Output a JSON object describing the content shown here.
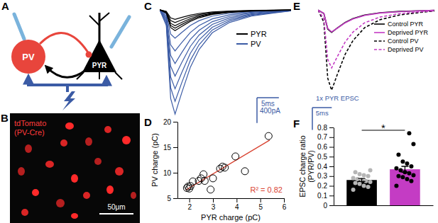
{
  "diagram": {
    "title": "A",
    "nodes": [
      {
        "label": "PV",
        "color": "#e8453c"
      },
      {
        "label": "PYR",
        "color": "#000000"
      }
    ]
  },
  "image": {
    "title": "B",
    "label_lines": [
      "tdTomato",
      "(PV-Cre)"
    ],
    "scale_bar": "50μm"
  },
  "chart_data": [
    {
      "type": "line",
      "title": "C",
      "x": [
        0,
        1.5,
        2.5,
        3.5,
        5,
        7,
        9,
        12,
        16,
        21,
        26,
        30
      ],
      "xlim": [
        0,
        30
      ],
      "ylim": [
        -1750,
        100
      ],
      "tick_labels": false,
      "series": [
        {
          "name": "PYR",
          "color": "#000000",
          "traces": [
            [
              0,
              -23,
              -128,
              -150,
              -120,
              -83,
              -57,
              -33,
              -18,
              -9,
              -5,
              -2
            ],
            [
              0,
              -30,
              -170,
              -200,
              -160,
              -110,
              -76,
              -44,
              -24,
              -12,
              -6,
              -2
            ],
            [
              0,
              -38,
              -213,
              -250,
              -200,
              -138,
              -95,
              -55,
              -30,
              -15,
              -8,
              -3
            ],
            [
              0,
              -44,
              -247,
              -290,
              -232,
              -160,
              -110,
              -64,
              -35,
              -17,
              -9,
              -3
            ],
            [
              0,
              -50,
              -281,
              -330,
              -264,
              -182,
              -125,
              -73,
              -40,
              -20,
              -10,
              -3
            ]
          ]
        },
        {
          "name": "PV",
          "color": "#3b5ba5",
          "traces": [
            [
              0,
              -68,
              -383,
              -450,
              -360,
              -248,
              -171,
              -99,
              -54,
              -27,
              -14,
              -5
            ],
            [
              0,
              -98,
              -553,
              -650,
              -520,
              -358,
              -247,
              -143,
              -78,
              -39,
              -20,
              -7
            ],
            [
              0,
              -128,
              -723,
              -850,
              -680,
              -468,
              -323,
              -187,
              -102,
              -51,
              -26,
              -9
            ],
            [
              0,
              -158,
              -893,
              -1050,
              -840,
              -578,
              -399,
              -231,
              -126,
              -63,
              -32,
              -11
            ],
            [
              0,
              -188,
              -1063,
              -1250,
              -1000,
              -688,
              -475,
              -275,
              -150,
              -75,
              -38,
              -13
            ],
            [
              0,
              -218,
              -1233,
              -1450,
              -1160,
              -798,
              -551,
              -319,
              -174,
              -87,
              -44,
              -15
            ],
            [
              0,
              -248,
              -1403,
              -1650,
              -1320,
              -908,
              -627,
              -363,
              -198,
              -99,
              -50,
              -17
            ]
          ]
        }
      ],
      "scale_bars": [
        {
          "value": 400,
          "label": "400pA"
        },
        {
          "value": 5,
          "label": "5ms"
        }
      ]
    },
    {
      "type": "scatter",
      "title": "D",
      "xlabel": "PYR charge (pC)",
      "ylabel": "PV charge (pC)",
      "x": [
        1.9,
        1.95,
        2.0,
        2.05,
        2.15,
        2.4,
        2.5,
        2.6,
        2.65,
        2.9,
        3.0,
        3.3,
        3.4,
        3.5,
        3.95,
        4.35,
        5.35
      ],
      "values": [
        7.0,
        7.3,
        6.9,
        7.4,
        8.3,
        8.4,
        8.9,
        9.7,
        8.4,
        6.7,
        8.9,
        10.8,
        11.2,
        11.0,
        13.2,
        10.3,
        17.2
      ],
      "color": "#000000",
      "marker": "circle-open",
      "xlim": [
        1.5,
        6
      ],
      "ylim": [
        5,
        20
      ],
      "xticks": [
        2,
        3,
        4,
        5,
        6
      ],
      "yticks": [
        5,
        10,
        15,
        20
      ],
      "fit": {
        "x": [
          1.85,
          5.4
        ],
        "values": [
          6.6,
          16.4
        ],
        "color": "#d9412f"
      },
      "annotation": "R² = 0.82"
    },
    {
      "type": "line",
      "title": "E",
      "x": [
        0,
        1.5,
        2.5,
        3.5,
        5,
        7,
        9,
        12,
        16,
        21,
        26,
        30
      ],
      "xlim": [
        0,
        30
      ],
      "ylim": [
        -4,
        0.2
      ],
      "tick_labels": false,
      "series": [
        {
          "name": "Control PYR",
          "color": "#000000",
          "line_style": "solid",
          "values": [
            0,
            -0.15,
            -0.85,
            -1,
            -0.8,
            -0.55,
            -0.38,
            -0.22,
            -0.12,
            -0.06,
            -0.03,
            -0.01
          ]
        },
        {
          "name": "Deprived PYR",
          "color": "#c43cc4",
          "line_style": "solid",
          "values": [
            0,
            -0.14,
            -0.82,
            -0.98,
            -0.81,
            -0.57,
            -0.4,
            -0.24,
            -0.13,
            -0.07,
            -0.03,
            -0.01
          ]
        },
        {
          "name": "Control PV",
          "color": "#000000",
          "line_style": "dashed",
          "values": [
            0,
            -0.54,
            -3.06,
            -3.6,
            -2.88,
            -1.98,
            -1.37,
            -0.79,
            -0.43,
            -0.22,
            -0.11,
            -0.04
          ]
        },
        {
          "name": "Deprived PV",
          "color": "#c43cc4",
          "line_style": "dashed",
          "values": [
            0,
            -0.39,
            -2.21,
            -2.6,
            -2.08,
            -1.43,
            -0.99,
            -0.57,
            -0.31,
            -0.16,
            -0.08,
            -0.03
          ]
        }
      ],
      "scale_bars": [
        {
          "value": 1,
          "label": "1x PYR EPSC"
        },
        {
          "value": 5,
          "label": "5ms"
        }
      ]
    },
    {
      "type": "bar",
      "title": "F",
      "ylabel": [
        "EPSC charge ratio",
        "(PYR/PV)"
      ],
      "categories": [
        null,
        null
      ],
      "values": [
        0.26,
        0.37
      ],
      "errors": [
        0.015,
        0.03
      ],
      "colors": [
        "#000000",
        "#c43cc4"
      ],
      "points": [
        {
          "color": "#b5b5b5",
          "values": [
            0.16,
            0.19,
            0.2,
            0.22,
            0.23,
            0.24,
            0.25,
            0.26,
            0.27,
            0.28,
            0.3,
            0.31,
            0.32,
            0.34,
            0.36
          ]
        },
        {
          "color": "#000000",
          "values": [
            0.2,
            0.25,
            0.27,
            0.29,
            0.3,
            0.31,
            0.33,
            0.34,
            0.36,
            0.38,
            0.4,
            0.43,
            0.45,
            0.52,
            0.63,
            0.74
          ]
        }
      ],
      "ylim": [
        0,
        0.8
      ],
      "yticks": [
        0,
        0.1,
        0.2,
        0.3,
        0.4,
        0.5,
        0.6,
        0.7,
        0.8
      ],
      "annotation": "*"
    }
  ]
}
